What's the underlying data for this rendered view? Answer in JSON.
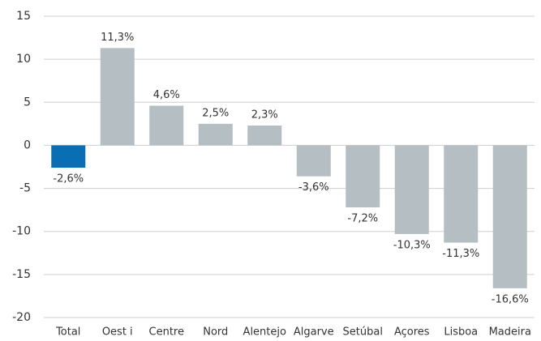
{
  "chart_data": {
    "type": "bar",
    "categories": [
      "Total",
      "Oest i",
      "Centre",
      "Nord",
      "Alentejo",
      "Algarve",
      "Setúbal",
      "Açores",
      "Lisboa",
      "Madeira"
    ],
    "values": [
      -2.6,
      11.3,
      4.6,
      2.5,
      2.3,
      -3.6,
      -7.2,
      -10.3,
      -11.3,
      -16.6
    ],
    "value_labels": [
      "-2,6%",
      "11,3%",
      "4,6%",
      "2,5%",
      "2,3%",
      "-3,6%",
      "-7,2%",
      "-10,3%",
      "-11,3%",
      "-16,6%"
    ],
    "colors": [
      "#0a6eb4",
      "#b4bec3",
      "#b4bec3",
      "#b4bec3",
      "#b4bec3",
      "#b4bec3",
      "#b4bec3",
      "#b4bec3",
      "#b4bec3",
      "#b4bec3"
    ],
    "ylim": [
      -20,
      15
    ],
    "yticks": [
      15,
      10,
      5,
      0,
      -5,
      -10,
      -15,
      -20
    ],
    "grid": true
  }
}
